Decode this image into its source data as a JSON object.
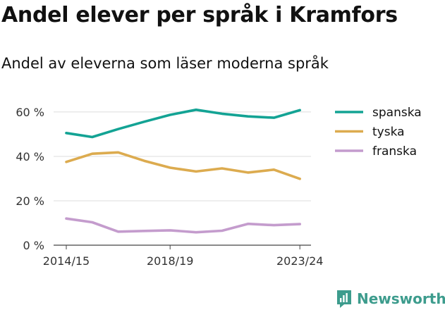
{
  "chart_data": {
    "type": "line",
    "title": "Andel elever per språk i Kramfors",
    "subtitle": "Andel av eleverna som läser moderna språk",
    "xlabel": "",
    "ylabel": "",
    "x_tick_labels": [
      "2014/15",
      "2018/19",
      "2023/24"
    ],
    "y_ticks": [
      0,
      20,
      40,
      60
    ],
    "y_tick_labels": [
      "0 %",
      "20 %",
      "40 %",
      "60 %"
    ],
    "ylim": [
      0,
      66
    ],
    "grid": "horizontal",
    "legend_position": "right",
    "series": [
      {
        "name": "spanska",
        "color": "#13a394",
        "values": [
          50.5,
          48.7,
          52.3,
          55.6,
          58.7,
          61.0,
          59.2,
          58.0,
          57.4,
          60.8
        ]
      },
      {
        "name": "tyska",
        "color": "#dcab4f",
        "values": [
          37.5,
          41.2,
          41.8,
          38.0,
          34.9,
          33.2,
          34.6,
          32.7,
          34.0,
          29.9
        ]
      },
      {
        "name": "franska",
        "color": "#c49ccd",
        "values": [
          12.0,
          10.3,
          6.1,
          6.4,
          6.7,
          5.8,
          6.5,
          9.6,
          9.0,
          9.5
        ]
      }
    ]
  },
  "brand": {
    "name": "Newsworthy",
    "color": "#3d9c8d",
    "icon": "newsworthy-logo-icon"
  }
}
